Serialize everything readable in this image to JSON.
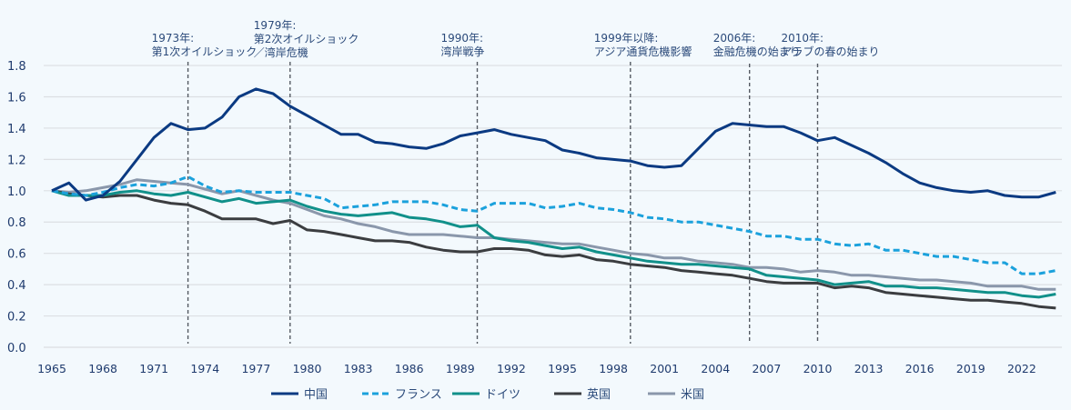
{
  "chart_data": {
    "type": "line",
    "title": "",
    "xlabel": "",
    "ylabel": "",
    "ylim": [
      0.0,
      1.8
    ],
    "xlim": [
      1965,
      2024
    ],
    "grid": "horizontal",
    "legend_position": "bottom",
    "yticks": [
      "0.0",
      "0.2",
      "0.4",
      "0.6",
      "0.8",
      "1.0",
      "1.2",
      "1.4",
      "1.6",
      "1.8"
    ],
    "ytick_values": [
      0.0,
      0.2,
      0.4,
      0.6,
      0.8,
      1.0,
      1.2,
      1.4,
      1.6,
      1.8
    ],
    "xticks": [
      "1965",
      "1968",
      "1971",
      "1974",
      "1977",
      "1980",
      "1983",
      "1986",
      "1989",
      "1992",
      "1995",
      "1998",
      "2001",
      "2004",
      "2007",
      "2010",
      "2013",
      "2016",
      "2019",
      "2022"
    ],
    "xtick_values": [
      1965,
      1968,
      1971,
      1974,
      1977,
      1980,
      1983,
      1986,
      1989,
      1992,
      1995,
      1998,
      2001,
      2004,
      2007,
      2010,
      2013,
      2016,
      2019,
      2022
    ],
    "x": [
      1965,
      1966,
      1967,
      1968,
      1969,
      1970,
      1971,
      1972,
      1973,
      1974,
      1975,
      1976,
      1977,
      1978,
      1979,
      1980,
      1981,
      1982,
      1983,
      1984,
      1985,
      1986,
      1987,
      1988,
      1989,
      1990,
      1991,
      1992,
      1993,
      1994,
      1995,
      1996,
      1997,
      1998,
      1999,
      2000,
      2001,
      2002,
      2003,
      2004,
      2005,
      2006,
      2007,
      2008,
      2009,
      2010,
      2011,
      2012,
      2013,
      2014,
      2015,
      2016,
      2017,
      2018,
      2019,
      2020,
      2021,
      2022,
      2023,
      2024
    ],
    "series": [
      {
        "name": "中国",
        "color": "#0b3a82",
        "dash": "solid",
        "values": [
          1.0,
          1.05,
          0.94,
          0.97,
          1.06,
          1.2,
          1.34,
          1.43,
          1.39,
          1.4,
          1.47,
          1.6,
          1.65,
          1.62,
          1.54,
          1.48,
          1.42,
          1.36,
          1.36,
          1.31,
          1.3,
          1.28,
          1.27,
          1.3,
          1.35,
          1.37,
          1.39,
          1.36,
          1.34,
          1.32,
          1.26,
          1.24,
          1.21,
          1.2,
          1.19,
          1.16,
          1.15,
          1.16,
          1.27,
          1.38,
          1.43,
          1.42,
          1.41,
          1.41,
          1.37,
          1.32,
          1.34,
          1.29,
          1.24,
          1.18,
          1.11,
          1.05,
          1.02,
          1.0,
          0.99,
          1.0,
          0.97,
          0.96,
          0.96,
          0.99
        ]
      },
      {
        "name": "フランス",
        "color": "#1ba1dc",
        "dash": "dashed",
        "values": [
          1.0,
          0.98,
          0.97,
          0.99,
          1.02,
          1.04,
          1.03,
          1.05,
          1.09,
          1.03,
          0.99,
          1.0,
          0.99,
          0.99,
          0.99,
          0.97,
          0.95,
          0.89,
          0.9,
          0.91,
          0.93,
          0.93,
          0.93,
          0.91,
          0.88,
          0.87,
          0.92,
          0.92,
          0.92,
          0.89,
          0.9,
          0.92,
          0.89,
          0.88,
          0.86,
          0.83,
          0.82,
          0.8,
          0.8,
          0.78,
          0.76,
          0.74,
          0.71,
          0.71,
          0.69,
          0.69,
          0.66,
          0.65,
          0.66,
          0.62,
          0.62,
          0.6,
          0.58,
          0.58,
          0.56,
          0.54,
          0.54,
          0.47,
          0.47,
          0.49
        ]
      },
      {
        "name": "ドイツ",
        "color": "#11908a",
        "dash": "solid",
        "values": [
          1.0,
          0.97,
          0.97,
          0.97,
          0.99,
          1.0,
          0.98,
          0.97,
          0.99,
          0.96,
          0.93,
          0.95,
          0.92,
          0.93,
          0.94,
          0.9,
          0.87,
          0.85,
          0.84,
          0.85,
          0.86,
          0.83,
          0.82,
          0.8,
          0.77,
          0.78,
          0.7,
          0.68,
          0.67,
          0.65,
          0.63,
          0.64,
          0.61,
          0.59,
          0.57,
          0.55,
          0.54,
          0.53,
          0.53,
          0.52,
          0.51,
          0.5,
          0.46,
          0.45,
          0.44,
          0.43,
          0.4,
          0.41,
          0.42,
          0.39,
          0.39,
          0.38,
          0.38,
          0.37,
          0.36,
          0.35,
          0.35,
          0.33,
          0.32,
          0.34
        ]
      },
      {
        "name": "英国",
        "color": "#3b3d40",
        "dash": "solid",
        "values": [
          1.0,
          0.98,
          0.97,
          0.96,
          0.97,
          0.97,
          0.94,
          0.92,
          0.91,
          0.87,
          0.82,
          0.82,
          0.82,
          0.79,
          0.81,
          0.75,
          0.74,
          0.72,
          0.7,
          0.68,
          0.68,
          0.67,
          0.64,
          0.62,
          0.61,
          0.61,
          0.63,
          0.63,
          0.62,
          0.59,
          0.58,
          0.59,
          0.56,
          0.55,
          0.53,
          0.52,
          0.51,
          0.49,
          0.48,
          0.47,
          0.46,
          0.44,
          0.42,
          0.41,
          0.41,
          0.41,
          0.38,
          0.39,
          0.38,
          0.35,
          0.34,
          0.33,
          0.32,
          0.31,
          0.3,
          0.3,
          0.29,
          0.28,
          0.26,
          0.25
        ]
      },
      {
        "name": "米国",
        "color": "#8a97ab",
        "dash": "solid",
        "values": [
          1.0,
          0.99,
          1.0,
          1.02,
          1.04,
          1.07,
          1.06,
          1.05,
          1.04,
          1.01,
          0.98,
          1.0,
          0.97,
          0.94,
          0.92,
          0.88,
          0.84,
          0.82,
          0.79,
          0.77,
          0.74,
          0.72,
          0.72,
          0.72,
          0.71,
          0.7,
          0.7,
          0.69,
          0.68,
          0.67,
          0.66,
          0.66,
          0.64,
          0.62,
          0.6,
          0.59,
          0.57,
          0.57,
          0.55,
          0.54,
          0.53,
          0.51,
          0.51,
          0.5,
          0.48,
          0.49,
          0.48,
          0.46,
          0.46,
          0.45,
          0.44,
          0.43,
          0.43,
          0.42,
          0.41,
          0.39,
          0.39,
          0.39,
          0.37,
          0.37
        ]
      }
    ],
    "annotations": [
      {
        "year": 1973,
        "lines": [
          "1973年:",
          "第1次オイルショック"
        ]
      },
      {
        "year": 1979,
        "lines": [
          "1979年:",
          "第2次オイルショック",
          "／湾岸危機"
        ]
      },
      {
        "year": 1990,
        "lines": [
          "1990年:",
          "湾岸戦争"
        ]
      },
      {
        "year": 1999,
        "lines": [
          "1999年以降:",
          "アジア通貨危機影響"
        ]
      },
      {
        "year": 2006,
        "lines": [
          "2006年:",
          "金融危機の始まり"
        ]
      },
      {
        "year": 2010,
        "lines": [
          "2010年:",
          "アラブの春の始まり"
        ]
      }
    ]
  }
}
